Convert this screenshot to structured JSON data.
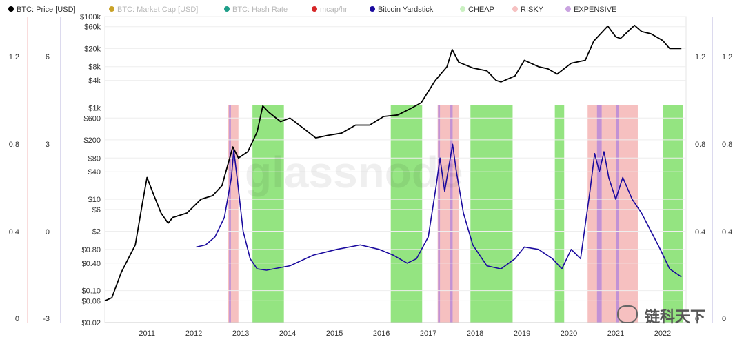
{
  "legend": [
    {
      "label": "BTC: Price [USD]",
      "color": "#000000",
      "active": true
    },
    {
      "label": "BTC: Market Cap [USD]",
      "color": "#c9a227",
      "active": false
    },
    {
      "label": "BTC: Hash Rate",
      "color": "#1f9e89",
      "active": false
    },
    {
      "label": "mcap/hr",
      "color": "#d62728",
      "active": false
    },
    {
      "label": "Bitcoin Yardstick",
      "color": "#1a0a9e",
      "active": true
    },
    {
      "label": "CHEAP",
      "color": "#c9f0c0",
      "active": true
    },
    {
      "label": "RISKY",
      "color": "#f6c1c1",
      "active": true
    },
    {
      "label": "EXPENSIVE",
      "color": "#c9a3e0",
      "active": true
    }
  ],
  "axes": {
    "left_outer": [
      "1.2",
      "0.8",
      "0.4",
      "0"
    ],
    "left_inner": [
      "6",
      "3",
      "0",
      "-3"
    ],
    "price": [
      "$100k",
      "$60k",
      "$20k",
      "$8k",
      "$4k",
      "$1k",
      "$600",
      "$200",
      "$80",
      "$40",
      "$10",
      "$6",
      "$2",
      "$0.80",
      "$0.40",
      "$0.10",
      "$0.06",
      "$0.02"
    ],
    "right_inner": [
      "1.2",
      "0.8",
      "0.4",
      "0"
    ],
    "right_outer": [
      "1.2",
      "0.8",
      "0.4",
      "0"
    ],
    "years": [
      "2011",
      "2012",
      "2013",
      "2014",
      "2015",
      "2016",
      "2017",
      "2018",
      "2019",
      "2020",
      "2021",
      "2022"
    ]
  },
  "watermark": "glassnode",
  "badge": {
    "text": "链科天下",
    "icon": "wechat-icon"
  },
  "chart_data": {
    "type": "line",
    "series": [
      {
        "name": "BTC: Price [USD]",
        "color": "#000000",
        "points": [
          [
            2010.55,
            0.06
          ],
          [
            2010.7,
            0.07
          ],
          [
            2010.9,
            0.25
          ],
          [
            2011.05,
            0.5
          ],
          [
            2011.2,
            1
          ],
          [
            2011.35,
            8
          ],
          [
            2011.45,
            30
          ],
          [
            2011.6,
            12
          ],
          [
            2011.75,
            5
          ],
          [
            2011.9,
            3
          ],
          [
            2012.0,
            4
          ],
          [
            2012.3,
            5
          ],
          [
            2012.6,
            10
          ],
          [
            2012.85,
            12
          ],
          [
            2013.05,
            20
          ],
          [
            2013.28,
            140
          ],
          [
            2013.4,
            80
          ],
          [
            2013.6,
            110
          ],
          [
            2013.8,
            300
          ],
          [
            2013.92,
            1100
          ],
          [
            2014.05,
            800
          ],
          [
            2014.3,
            500
          ],
          [
            2014.5,
            600
          ],
          [
            2014.8,
            350
          ],
          [
            2015.05,
            220
          ],
          [
            2015.3,
            250
          ],
          [
            2015.6,
            280
          ],
          [
            2015.9,
            420
          ],
          [
            2016.2,
            420
          ],
          [
            2016.5,
            650
          ],
          [
            2016.8,
            700
          ],
          [
            2017.1,
            1000
          ],
          [
            2017.3,
            1300
          ],
          [
            2017.6,
            4000
          ],
          [
            2017.85,
            8000
          ],
          [
            2017.96,
            19000
          ],
          [
            2018.1,
            10000
          ],
          [
            2018.4,
            7500
          ],
          [
            2018.7,
            6500
          ],
          [
            2018.9,
            4000
          ],
          [
            2019.0,
            3700
          ],
          [
            2019.3,
            5000
          ],
          [
            2019.5,
            11000
          ],
          [
            2019.8,
            8000
          ],
          [
            2020.0,
            7200
          ],
          [
            2020.2,
            5500
          ],
          [
            2020.5,
            9500
          ],
          [
            2020.8,
            11000
          ],
          [
            2020.98,
            29000
          ],
          [
            2021.28,
            62000
          ],
          [
            2021.45,
            36000
          ],
          [
            2021.55,
            33000
          ],
          [
            2021.85,
            64000
          ],
          [
            2022.0,
            47000
          ],
          [
            2022.2,
            42000
          ],
          [
            2022.45,
            30000
          ],
          [
            2022.6,
            20000
          ],
          [
            2022.85,
            20000
          ]
        ]
      },
      {
        "name": "Bitcoin Yardstick",
        "color": "#1a0a9e",
        "points": [
          [
            2012.5,
            0.9
          ],
          [
            2012.7,
            1.0
          ],
          [
            2012.9,
            1.5
          ],
          [
            2013.1,
            4
          ],
          [
            2013.25,
            30
          ],
          [
            2013.3,
            120
          ],
          [
            2013.38,
            25
          ],
          [
            2013.5,
            2
          ],
          [
            2013.65,
            0.5
          ],
          [
            2013.8,
            0.3
          ],
          [
            2014.0,
            0.28
          ],
          [
            2014.5,
            0.35
          ],
          [
            2015.0,
            0.6
          ],
          [
            2015.5,
            0.8
          ],
          [
            2016.0,
            1.0
          ],
          [
            2016.4,
            0.8
          ],
          [
            2016.7,
            0.6
          ],
          [
            2017.0,
            0.4
          ],
          [
            2017.2,
            0.5
          ],
          [
            2017.45,
            1.5
          ],
          [
            2017.62,
            20
          ],
          [
            2017.7,
            80
          ],
          [
            2017.8,
            15
          ],
          [
            2017.97,
            160
          ],
          [
            2018.05,
            40
          ],
          [
            2018.2,
            5
          ],
          [
            2018.4,
            1.0
          ],
          [
            2018.7,
            0.35
          ],
          [
            2019.0,
            0.3
          ],
          [
            2019.3,
            0.5
          ],
          [
            2019.5,
            0.9
          ],
          [
            2019.8,
            0.8
          ],
          [
            2020.1,
            0.5
          ],
          [
            2020.3,
            0.3
          ],
          [
            2020.5,
            0.8
          ],
          [
            2020.7,
            0.5
          ],
          [
            2020.9,
            15
          ],
          [
            2021.0,
            100
          ],
          [
            2021.1,
            40
          ],
          [
            2021.2,
            110
          ],
          [
            2021.3,
            30
          ],
          [
            2021.45,
            10
          ],
          [
            2021.6,
            30
          ],
          [
            2021.8,
            10
          ],
          [
            2022.0,
            5
          ],
          [
            2022.2,
            2
          ],
          [
            2022.4,
            0.8
          ],
          [
            2022.6,
            0.3
          ],
          [
            2022.85,
            0.2
          ]
        ]
      }
    ],
    "bands": [
      {
        "type": "CHEAP",
        "ranges": [
          [
            2013.7,
            2014.37
          ],
          [
            2016.65,
            2017.32
          ],
          [
            2018.35,
            2019.25
          ],
          [
            2020.15,
            2020.35
          ],
          [
            2022.45,
            2022.88
          ]
        ]
      },
      {
        "type": "RISKY",
        "ranges": [
          [
            2013.18,
            2013.4
          ],
          [
            2017.65,
            2018.1
          ],
          [
            2020.85,
            2021.92
          ]
        ]
      },
      {
        "type": "EXPENSIVE",
        "ranges": [
          [
            2013.2,
            2013.24
          ],
          [
            2017.66,
            2017.7
          ],
          [
            2017.92,
            2017.97
          ],
          [
            2021.05,
            2021.15
          ],
          [
            2021.45,
            2021.52
          ]
        ]
      }
    ],
    "xlim": [
      2010.55,
      2022.95
    ],
    "ylim": [
      0.02,
      100000
    ],
    "yscale": "log"
  }
}
